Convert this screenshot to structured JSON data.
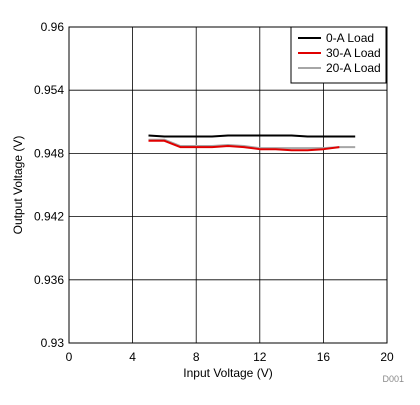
{
  "chart_data": {
    "type": "line",
    "title": "",
    "xlabel": "Input Voltage (V)",
    "ylabel": "Output Voltage (V)",
    "xlim": [
      0,
      20
    ],
    "ylim": [
      0.93,
      0.96
    ],
    "xticks": [
      0,
      4,
      8,
      12,
      16,
      20
    ],
    "yticks": [
      0.93,
      0.936,
      0.942,
      0.948,
      0.954,
      0.96
    ],
    "ytick_labels": [
      "0.93",
      "0.936",
      "0.942",
      "0.948",
      "0.954",
      "0.96"
    ],
    "xtick_labels": [
      "0",
      "4",
      "8",
      "12",
      "16",
      "20"
    ],
    "grid": true,
    "legend_position": "top-right",
    "footnote": "D001",
    "series": [
      {
        "name": "0-A Load",
        "color": "#000000",
        "x": [
          5,
          6,
          7,
          8,
          9,
          10,
          11,
          12,
          13,
          14,
          15,
          16,
          17,
          18
        ],
        "y": [
          0.9497,
          0.9496,
          0.9496,
          0.9496,
          0.9496,
          0.9497,
          0.9497,
          0.9497,
          0.9497,
          0.9497,
          0.9496,
          0.9496,
          0.9496,
          0.9496
        ]
      },
      {
        "name": "30-A Load",
        "color": "#e00000",
        "x": [
          5,
          6,
          7,
          8,
          9,
          10,
          11,
          12,
          13,
          14,
          15,
          16,
          17
        ],
        "y": [
          0.9492,
          0.9492,
          0.9486,
          0.9486,
          0.9486,
          0.9487,
          0.9486,
          0.9484,
          0.9484,
          0.9483,
          0.9483,
          0.9484,
          0.9486
        ]
      },
      {
        "name": "20-A Load",
        "color": "#a6a6a6",
        "x": [
          5,
          6,
          7,
          8,
          9,
          10,
          11,
          12,
          13,
          14,
          15,
          16,
          17,
          18
        ],
        "y": [
          0.9493,
          0.9493,
          0.9487,
          0.9487,
          0.9487,
          0.9488,
          0.9487,
          0.9485,
          0.9485,
          0.9485,
          0.9485,
          0.9485,
          0.9486,
          0.9486
        ]
      }
    ]
  }
}
